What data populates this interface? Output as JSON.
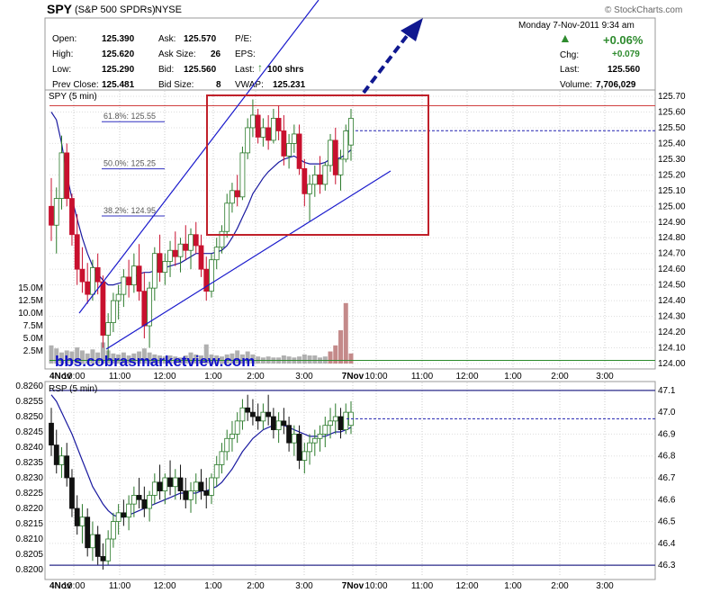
{
  "header": {
    "symbol": "SPY",
    "name": "(S&P 500 SPDRs)",
    "exchange": "NYSE",
    "copyright": "© StockCharts.com",
    "datetime": "Monday  7-Nov-2011  9:34 am",
    "change_pct": "+0.06%",
    "up_color": "#2e8b2e"
  },
  "quote": {
    "open": {
      "label": "Open:",
      "value": "125.390"
    },
    "high": {
      "label": "High:",
      "value": "125.620"
    },
    "low": {
      "label": "Low:",
      "value": "125.290"
    },
    "prev_close": {
      "label": "Prev Close:",
      "value": "125.481"
    },
    "ask": {
      "label": "Ask:",
      "value": "125.570"
    },
    "ask_size": {
      "label": "Ask Size:",
      "value": "26"
    },
    "bid": {
      "label": "Bid:",
      "value": "125.560"
    },
    "bid_size": {
      "label": "Bid Size:",
      "value": "8"
    },
    "pe": {
      "label": "P/E:",
      "value": ""
    },
    "eps": {
      "label": "EPS:",
      "value": ""
    },
    "last_trade": {
      "label": "Last:",
      "value": "100 shrs"
    },
    "vwap": {
      "label": "VWAP:",
      "value": "125.231"
    },
    "chg": {
      "label": "Chg:",
      "value": "+0.079"
    },
    "last": {
      "label": "Last:",
      "value": "125.560"
    },
    "volume": {
      "label": "Volume:",
      "value": "7,706,029"
    }
  },
  "watermark": "bbs.cobrasmarketview.com",
  "chart_data": [
    {
      "type": "candlestick",
      "title": "SPY (5 min)",
      "interval_minutes": 5,
      "x_ticks": [
        "4Nov",
        "10:00",
        "11:00",
        "12:00",
        "1:00",
        "2:00",
        "3:00",
        "7Nov",
        "10:00",
        "11:00",
        "12:00",
        "1:00",
        "2:00",
        "3:00"
      ],
      "y_ticks": [
        "125.70",
        "125.60",
        "125.50",
        "125.40",
        "125.30",
        "125.20",
        "125.10",
        "125.00",
        "124.90",
        "124.80",
        "124.70",
        "124.60",
        "124.50",
        "124.40",
        "124.30",
        "124.20",
        "124.10",
        "124.00"
      ],
      "ylim": [
        124.0,
        125.7
      ],
      "volume_ticks": [
        "15.0M",
        "12.5M",
        "10.0M",
        "7.5M",
        "5.0M",
        "2.5M"
      ],
      "volume_max": 15.0,
      "fib_levels": [
        {
          "label": "61.8%: 125.55",
          "value": 125.55
        },
        {
          "label": "50.0%: 125.25",
          "value": 125.25
        },
        {
          "label": "38.2%: 124.95",
          "value": 124.95
        }
      ],
      "prev_close_line": 125.481,
      "resistance_line": 125.64,
      "support_line": 124.02,
      "candles": [
        [
          125.0,
          125.18,
          124.78,
          124.88
        ],
        [
          124.88,
          125.12,
          124.7,
          125.05
        ],
        [
          125.05,
          125.45,
          124.98,
          125.34
        ],
        [
          125.34,
          125.4,
          125.0,
          125.05
        ],
        [
          125.05,
          125.08,
          124.75,
          124.82
        ],
        [
          124.82,
          124.95,
          124.5,
          124.6
        ],
        [
          124.6,
          124.74,
          124.45,
          124.52
        ],
        [
          124.52,
          124.64,
          124.38,
          124.44
        ],
        [
          124.44,
          124.66,
          124.4,
          124.61
        ],
        [
          124.61,
          124.7,
          124.44,
          124.52
        ],
        [
          124.52,
          124.56,
          124.1,
          124.18
        ],
        [
          124.18,
          124.32,
          124.02,
          124.26
        ],
        [
          124.26,
          124.45,
          124.2,
          124.4
        ],
        [
          124.4,
          124.5,
          124.28,
          124.44
        ],
        [
          124.44,
          124.6,
          124.36,
          124.55
        ],
        [
          124.55,
          124.66,
          124.42,
          124.5
        ],
        [
          124.5,
          124.7,
          124.45,
          124.62
        ],
        [
          124.62,
          124.76,
          124.4,
          124.46
        ],
        [
          124.46,
          124.58,
          124.16,
          124.24
        ],
        [
          124.24,
          124.52,
          124.1,
          124.48
        ],
        [
          124.48,
          124.74,
          124.4,
          124.7
        ],
        [
          124.7,
          124.82,
          124.52,
          124.58
        ],
        [
          124.58,
          124.7,
          124.5,
          124.65
        ],
        [
          124.65,
          124.78,
          124.55,
          124.72
        ],
        [
          124.72,
          124.84,
          124.62,
          124.68
        ],
        [
          124.68,
          124.8,
          124.58,
          124.76
        ],
        [
          124.76,
          124.88,
          124.66,
          124.72
        ],
        [
          124.72,
          124.86,
          124.6,
          124.82
        ],
        [
          124.82,
          124.9,
          124.7,
          124.75
        ],
        [
          124.75,
          124.82,
          124.55,
          124.6
        ],
        [
          124.6,
          124.68,
          124.4,
          124.46
        ],
        [
          124.46,
          124.7,
          124.42,
          124.66
        ],
        [
          124.66,
          124.8,
          124.6,
          124.74
        ],
        [
          124.74,
          124.88,
          124.7,
          124.84
        ],
        [
          124.84,
          125.08,
          124.8,
          125.02
        ],
        [
          125.02,
          125.15,
          124.96,
          125.1
        ],
        [
          125.1,
          125.2,
          125.0,
          125.06
        ],
        [
          125.06,
          125.38,
          125.04,
          125.34
        ],
        [
          125.34,
          125.56,
          125.3,
          125.5
        ],
        [
          125.5,
          125.68,
          125.44,
          125.58
        ],
        [
          125.58,
          125.62,
          125.4,
          125.44
        ],
        [
          125.44,
          125.56,
          125.38,
          125.5
        ],
        [
          125.5,
          125.58,
          125.36,
          125.42
        ],
        [
          125.42,
          125.62,
          125.4,
          125.56
        ],
        [
          125.56,
          125.64,
          125.42,
          125.48
        ],
        [
          125.48,
          125.58,
          125.26,
          125.32
        ],
        [
          125.32,
          125.46,
          125.24,
          125.4
        ],
        [
          125.4,
          125.52,
          125.34,
          125.46
        ],
        [
          125.46,
          125.52,
          125.2,
          125.24
        ],
        [
          125.24,
          125.3,
          125.0,
          125.08
        ],
        [
          125.08,
          125.2,
          124.9,
          125.14
        ],
        [
          125.14,
          125.26,
          125.06,
          125.2
        ],
        [
          125.2,
          125.32,
          125.08,
          125.14
        ],
        [
          125.14,
          125.28,
          125.1,
          125.26
        ],
        [
          125.26,
          125.46,
          125.22,
          125.42
        ],
        [
          125.42,
          125.5,
          125.14,
          125.2
        ],
        [
          125.2,
          125.36,
          125.1,
          125.3
        ],
        [
          125.3,
          125.52,
          125.28,
          125.48
        ],
        [
          125.39,
          125.62,
          125.29,
          125.56
        ]
      ],
      "volumes": [
        3.6,
        3.0,
        2.2,
        2.6,
        2.4,
        3.2,
        2.6,
        2.0,
        2.8,
        2.2,
        4.2,
        2.6,
        2.0,
        1.8,
        2.2,
        1.6,
        2.0,
        2.4,
        3.0,
        2.2,
        1.8,
        1.6,
        1.4,
        1.6,
        1.4,
        1.2,
        1.6,
        2.2,
        1.8,
        1.6,
        3.8,
        1.8,
        1.6,
        1.4,
        1.8,
        2.0,
        2.6,
        1.8,
        2.4,
        1.8,
        1.4,
        1.2,
        1.4,
        1.2,
        1.2,
        1.6,
        1.4,
        1.2,
        1.4,
        1.8,
        1.6,
        1.6,
        1.2,
        1.4,
        2.4,
        3.6,
        6.6,
        12.0,
        2.0
      ],
      "ma_values": [
        125.6,
        125.55,
        125.4,
        125.2,
        125.05,
        124.92,
        124.8,
        124.7,
        124.62,
        124.57,
        124.53,
        124.5,
        124.5,
        124.51,
        124.52,
        124.53,
        124.55,
        124.57,
        124.58,
        124.58,
        124.59,
        124.6,
        124.61,
        124.62,
        124.63,
        124.64,
        124.66,
        124.68,
        124.7,
        124.7,
        124.7,
        124.7,
        124.71,
        124.72,
        124.75,
        124.8,
        124.86,
        124.93,
        125.0,
        125.08,
        125.13,
        125.18,
        125.22,
        125.25,
        125.28,
        125.3,
        125.31,
        125.32,
        125.3,
        125.28,
        125.27,
        125.27,
        125.27,
        125.28,
        125.3,
        125.3,
        125.31,
        125.33,
        125.36
      ]
    },
    {
      "type": "candlestick",
      "title": "RSP (5 min)",
      "x_ticks": [
        "4Nov",
        "10:00",
        "11:00",
        "12:00",
        "1:00",
        "2:00",
        "3:00",
        "7Nov",
        "10:00",
        "11:00",
        "12:00",
        "1:00",
        "2:00",
        "3:00"
      ],
      "y_ticks_left": [
        "0.8260",
        "0.8255",
        "0.8250",
        "0.8245",
        "0.8240",
        "0.8235",
        "0.8230",
        "0.8225",
        "0.8220",
        "0.8215",
        "0.8210",
        "0.8205",
        "0.8200"
      ],
      "y_ticks_right": [
        "47.1",
        "47.0",
        "46.9",
        "46.8",
        "46.7",
        "46.6",
        "46.5",
        "46.4",
        "46.3"
      ],
      "ylim": [
        46.28,
        47.12
      ],
      "top_line": 47.1,
      "bottom_line": 46.3,
      "prev_close_line": 46.97,
      "candles": [
        [
          46.95,
          47.02,
          46.8,
          46.85
        ],
        [
          46.85,
          46.92,
          46.72,
          46.76
        ],
        [
          46.76,
          46.84,
          46.7,
          46.8
        ],
        [
          46.8,
          46.86,
          46.66,
          46.7
        ],
        [
          46.7,
          46.74,
          46.52,
          46.56
        ],
        [
          46.56,
          46.62,
          46.44,
          46.48
        ],
        [
          46.48,
          46.58,
          46.4,
          46.52
        ],
        [
          46.52,
          46.56,
          46.34,
          46.38
        ],
        [
          46.38,
          46.5,
          46.32,
          46.44
        ],
        [
          46.44,
          46.48,
          46.3,
          46.34
        ],
        [
          46.34,
          46.4,
          46.28,
          46.32
        ],
        [
          46.32,
          46.46,
          46.3,
          46.42
        ],
        [
          46.42,
          46.54,
          46.38,
          46.5
        ],
        [
          46.5,
          46.58,
          46.44,
          46.54
        ],
        [
          46.54,
          46.6,
          46.48,
          46.52
        ],
        [
          46.52,
          46.62,
          46.46,
          46.58
        ],
        [
          46.58,
          46.66,
          46.52,
          46.62
        ],
        [
          46.62,
          46.7,
          46.56,
          46.6
        ],
        [
          46.6,
          46.66,
          46.52,
          46.56
        ],
        [
          46.56,
          46.64,
          46.5,
          46.62
        ],
        [
          46.62,
          46.72,
          46.58,
          46.68
        ],
        [
          46.68,
          46.76,
          46.6,
          46.64
        ],
        [
          46.64,
          46.72,
          46.58,
          46.7
        ],
        [
          46.7,
          46.78,
          46.62,
          46.66
        ],
        [
          46.66,
          46.74,
          46.6,
          46.7
        ],
        [
          46.7,
          46.76,
          46.6,
          46.64
        ],
        [
          46.64,
          46.7,
          46.56,
          46.6
        ],
        [
          46.6,
          46.68,
          46.54,
          46.64
        ],
        [
          46.64,
          46.72,
          46.58,
          46.68
        ],
        [
          46.68,
          46.74,
          46.6,
          46.64
        ],
        [
          46.64,
          46.7,
          46.56,
          46.62
        ],
        [
          46.62,
          46.72,
          46.58,
          46.7
        ],
        [
          46.7,
          46.8,
          46.66,
          46.76
        ],
        [
          46.76,
          46.86,
          46.72,
          46.82
        ],
        [
          46.82,
          46.92,
          46.78,
          46.88
        ],
        [
          46.88,
          46.96,
          46.82,
          46.9
        ],
        [
          46.9,
          47.0,
          46.86,
          46.96
        ],
        [
          46.96,
          47.06,
          46.92,
          47.02
        ],
        [
          47.02,
          47.08,
          46.96,
          47.0
        ],
        [
          47.0,
          47.06,
          46.94,
          46.98
        ],
        [
          46.98,
          47.04,
          46.92,
          46.96
        ],
        [
          46.96,
          47.04,
          46.92,
          47.0
        ],
        [
          47.0,
          47.08,
          46.94,
          46.98
        ],
        [
          46.98,
          47.02,
          46.88,
          46.92
        ],
        [
          46.92,
          47.0,
          46.86,
          46.96
        ],
        [
          46.96,
          47.02,
          46.9,
          46.94
        ],
        [
          46.94,
          46.98,
          46.82,
          46.86
        ],
        [
          46.86,
          46.94,
          46.8,
          46.9
        ],
        [
          46.9,
          46.94,
          46.74,
          46.78
        ],
        [
          46.78,
          46.86,
          46.72,
          46.82
        ],
        [
          46.82,
          46.9,
          46.76,
          46.86
        ],
        [
          46.86,
          46.92,
          46.8,
          46.88
        ],
        [
          46.88,
          46.94,
          46.82,
          46.9
        ],
        [
          46.9,
          46.98,
          46.84,
          46.94
        ],
        [
          46.94,
          47.02,
          46.88,
          46.96
        ],
        [
          46.96,
          47.04,
          46.9,
          46.98
        ],
        [
          46.98,
          47.02,
          46.88,
          46.92
        ],
        [
          46.92,
          47.04,
          46.9,
          47.0
        ],
        [
          46.94,
          47.05,
          46.9,
          47.0
        ]
      ],
      "ma_values": [
        47.08,
        47.05,
        47.0,
        46.95,
        46.9,
        46.84,
        46.78,
        46.72,
        46.66,
        46.62,
        46.58,
        46.55,
        46.53,
        46.52,
        46.52,
        46.53,
        46.54,
        46.55,
        46.56,
        46.57,
        46.58,
        46.59,
        46.6,
        46.61,
        46.62,
        46.63,
        46.63,
        46.63,
        46.63,
        46.64,
        46.64,
        46.65,
        46.66,
        46.68,
        46.71,
        46.74,
        46.78,
        46.82,
        46.85,
        46.88,
        46.9,
        46.92,
        46.93,
        46.94,
        46.94,
        46.94,
        46.93,
        46.92,
        46.91,
        46.9,
        46.89,
        46.89,
        46.89,
        46.89,
        46.9,
        46.91,
        46.91,
        46.92,
        46.93
      ]
    }
  ]
}
